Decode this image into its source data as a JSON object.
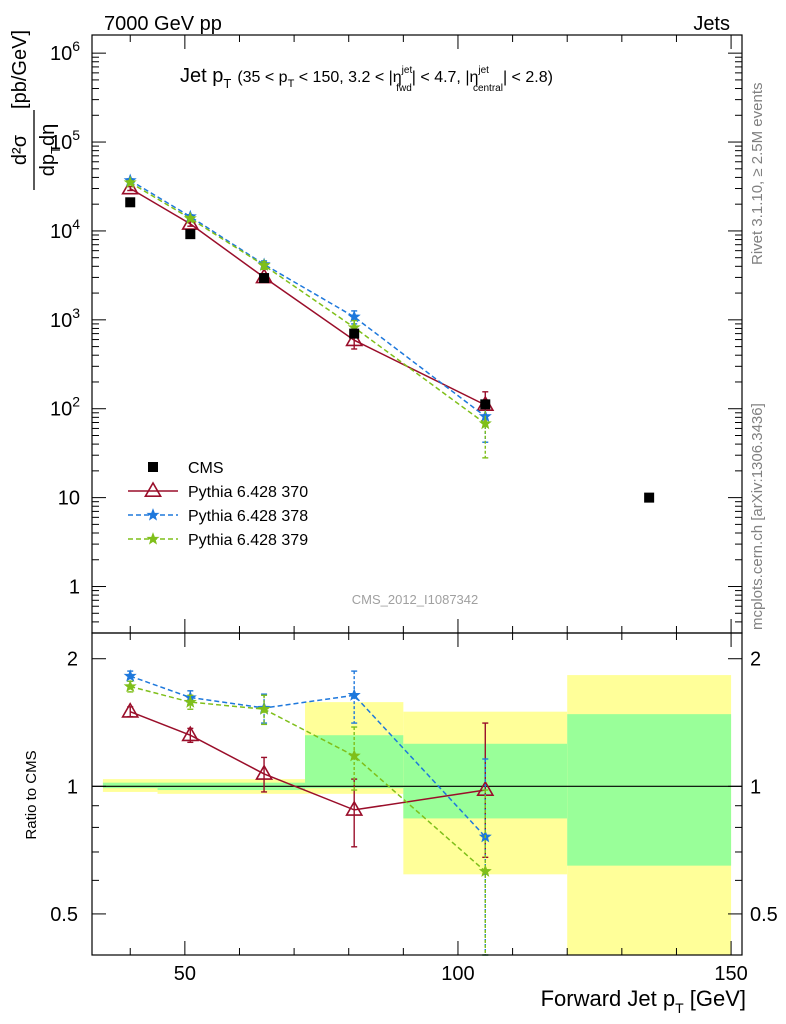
{
  "header": {
    "left": "7000 GeV pp",
    "right": "Jets"
  },
  "side_labels": {
    "rivet": "Rivet 3.1.10, ≥ 2.5M events",
    "mcplots": "mcplots.cern.ch [arXiv:1306.3436]"
  },
  "watermark": "CMS_2012_I1087342",
  "chart_data": [
    {
      "type": "scatter",
      "title": "Jet p_T (35 < p_T < 150, 3.2 < |η_fwd^jet| < 4.7, |η_central^jet| < 2.8)",
      "title_parts": {
        "main": "Jet p",
        "main_sub": "T",
        "cond1": "(35 < p",
        "cond1_sub": "T",
        "cond2": " < 150, 3.2 < |η",
        "eta1_sup": "jet",
        "eta1_sub": "fwd",
        "cond3": "| < 4.7, |η",
        "eta2_sup": "jet",
        "eta2_sub": "central",
        "cond4": "| < 2.8)"
      },
      "ylabel": "d²σ/dp_T dη [pb/GeV]",
      "ylabel_parts": {
        "num": "d²σ",
        "den": "dp",
        "den_sub": "T",
        "den2": "dη",
        "unit": "[pb/GeV]"
      },
      "yscale": "log",
      "ylim": [
        0.3,
        1600000
      ],
      "xlim": [
        33,
        152
      ],
      "ytick_labels": [
        {
          "value": 1000000,
          "base": "10",
          "exp": "6"
        },
        {
          "value": 100000,
          "base": "10",
          "exp": "5"
        },
        {
          "value": 10000,
          "base": "10",
          "exp": "4"
        },
        {
          "value": 1000,
          "base": "10",
          "exp": "3"
        },
        {
          "value": 100,
          "base": "10",
          "exp": "2"
        },
        {
          "value": 10,
          "base": "10",
          "exp": ""
        },
        {
          "value": 1,
          "base": "1",
          "exp": ""
        }
      ],
      "legend_position": "bottom-left",
      "series": [
        {
          "name": "CMS",
          "style": "data",
          "color": "#000000",
          "x": [
            40,
            51,
            64.5,
            81,
            105,
            135
          ],
          "y": [
            21000,
            9200,
            2950,
            700,
            112,
            10
          ]
        },
        {
          "name": "Pythia 6.428 370",
          "style": "solid-triangle",
          "color": "#9a0e2a",
          "x": [
            40,
            51,
            64.5,
            81,
            105
          ],
          "y": [
            30000,
            12000,
            3000,
            590,
            110
          ],
          "yerr_lo": [
            1500,
            700,
            300,
            120,
            35
          ],
          "yerr_hi": [
            1500,
            700,
            300,
            120,
            45
          ]
        },
        {
          "name": "Pythia 6.428 378",
          "style": "dashed-star",
          "color": "#1e78dc",
          "x": [
            40,
            51,
            64.5,
            81,
            105
          ],
          "y": [
            37000,
            14500,
            4200,
            1080,
            82
          ],
          "yerr_lo": [
            1500,
            700,
            400,
            180,
            40
          ],
          "yerr_hi": [
            1500,
            700,
            400,
            180,
            40
          ]
        },
        {
          "name": "Pythia 6.428 379",
          "style": "dashed-star",
          "color": "#7fbf1a",
          "x": [
            40,
            51,
            64.5,
            81,
            105
          ],
          "y": [
            35000,
            13800,
            4100,
            820,
            68
          ],
          "yerr_lo": [
            1500,
            700,
            400,
            160,
            40
          ],
          "yerr_hi": [
            1500,
            700,
            400,
            160,
            40
          ]
        }
      ]
    },
    {
      "type": "scatter",
      "ylabel": "Ratio to CMS",
      "xlabel": "Forward Jet p_T [GeV]",
      "xlabel_parts": {
        "main": "Forward Jet p",
        "sub": "T",
        "unit": " [GeV]"
      },
      "xlim": [
        33,
        152
      ],
      "ylim": [
        0.4,
        2.3
      ],
      "yscale": "log",
      "xtick_labels": [
        "50",
        "100",
        "150"
      ],
      "xtick_values": [
        50,
        100,
        150
      ],
      "ytick_labels": [
        "2",
        "1",
        "0.5"
      ],
      "ytick_values": [
        2,
        1,
        0.5
      ],
      "bands": [
        {
          "x0": 35,
          "x1": 45,
          "yellow": [
            0.97,
            1.04
          ],
          "green": [
            0.99,
            1.02
          ]
        },
        {
          "x0": 45,
          "x1": 72,
          "yellow": [
            0.96,
            1.04
          ],
          "green": [
            0.98,
            1.02
          ]
        },
        {
          "x0": 72,
          "x1": 90,
          "yellow": [
            0.96,
            1.58
          ],
          "green": [
            0.99,
            1.32
          ]
        },
        {
          "x0": 90,
          "x1": 120,
          "yellow": [
            0.62,
            1.5
          ],
          "green": [
            0.84,
            1.26
          ]
        },
        {
          "x0": 120,
          "x1": 150,
          "yellow": [
            0.4,
            1.83
          ],
          "green": [
            0.65,
            1.48
          ]
        }
      ],
      "series": [
        {
          "name": "Pythia 6.428 370",
          "color": "#9a0e2a",
          "x": [
            40,
            51,
            64.5,
            81,
            105
          ],
          "y": [
            1.5,
            1.32,
            1.07,
            0.88,
            0.98
          ],
          "yerr_lo": [
            0.04,
            0.05,
            0.1,
            0.16,
            0.3
          ],
          "yerr_hi": [
            0.04,
            0.05,
            0.1,
            0.16,
            0.43
          ]
        },
        {
          "name": "Pythia 6.428 378",
          "color": "#1e78dc",
          "x": [
            40,
            51,
            64.5,
            81,
            105
          ],
          "y": [
            1.82,
            1.62,
            1.53,
            1.64,
            0.76
          ],
          "yerr_lo": [
            0.05,
            0.06,
            0.12,
            0.23,
            0.4
          ],
          "yerr_hi": [
            0.05,
            0.06,
            0.12,
            0.23,
            0.4
          ]
        },
        {
          "name": "Pythia 6.428 379",
          "color": "#7fbf1a",
          "x": [
            40,
            51,
            64.5,
            81,
            105
          ],
          "y": [
            1.72,
            1.58,
            1.52,
            1.18,
            0.63
          ],
          "yerr_lo": [
            0.05,
            0.06,
            0.12,
            0.2,
            0.35
          ],
          "yerr_hi": [
            0.05,
            0.06,
            0.12,
            0.2,
            0.35
          ]
        }
      ]
    }
  ]
}
